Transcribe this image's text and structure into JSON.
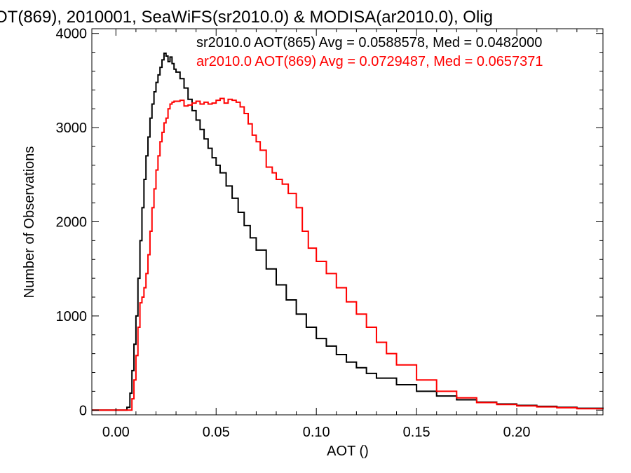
{
  "chart_data": {
    "type": "line",
    "title": "OT(869), 2010001, SeaWiFS(sr2010.0) & MODISA(ar2010.0), Olig",
    "xlabel": "AOT ()",
    "ylabel": "Number of Observations",
    "xlim": [
      -0.012,
      0.243
    ],
    "ylim": [
      -50,
      4050
    ],
    "xticks": [
      0.0,
      0.05,
      0.1,
      0.15,
      0.2
    ],
    "xtick_labels": [
      "0.00",
      "0.05",
      "0.10",
      "0.15",
      "0.20"
    ],
    "yticks": [
      0,
      1000,
      2000,
      3000,
      4000
    ],
    "ytick_labels": [
      "0",
      "1000",
      "2000",
      "3000",
      "4000"
    ],
    "grid": false,
    "legend_position": "top-right",
    "series": [
      {
        "name": "sr2010.0 AOT(865) Avg = 0.0588578, Med = 0.0482000",
        "color": "#000000",
        "x": [
          -0.012,
          0.0,
          0.004,
          0.0055,
          0.007,
          0.008,
          0.009,
          0.01,
          0.011,
          0.012,
          0.013,
          0.014,
          0.015,
          0.016,
          0.017,
          0.018,
          0.019,
          0.02,
          0.021,
          0.022,
          0.023,
          0.024,
          0.025,
          0.026,
          0.027,
          0.028,
          0.029,
          0.03,
          0.032,
          0.034,
          0.036,
          0.038,
          0.04,
          0.042,
          0.044,
          0.046,
          0.048,
          0.05,
          0.052,
          0.055,
          0.058,
          0.061,
          0.064,
          0.067,
          0.07,
          0.075,
          0.08,
          0.085,
          0.09,
          0.095,
          0.1,
          0.105,
          0.11,
          0.115,
          0.12,
          0.125,
          0.13,
          0.14,
          0.15,
          0.16,
          0.17,
          0.18,
          0.19,
          0.2,
          0.21,
          0.22,
          0.23,
          0.243
        ],
        "y": [
          0,
          0,
          0,
          30,
          180,
          420,
          700,
          1000,
          1400,
          1800,
          2150,
          2450,
          2700,
          2900,
          3100,
          3250,
          3380,
          3480,
          3560,
          3640,
          3720,
          3790,
          3760,
          3700,
          3750,
          3680,
          3620,
          3590,
          3520,
          3420,
          3300,
          3180,
          3080,
          2980,
          2880,
          2780,
          2680,
          2600,
          2520,
          2380,
          2250,
          2100,
          1960,
          1830,
          1700,
          1500,
          1330,
          1170,
          1020,
          880,
          760,
          680,
          590,
          510,
          450,
          390,
          340,
          270,
          200,
          150,
          110,
          85,
          65,
          50,
          40,
          30,
          20,
          10
        ]
      },
      {
        "name": "ar2010.0 AOT(869) Avg = 0.0729487, Med = 0.0657371",
        "color": "#ff0000",
        "x": [
          -0.012,
          0.0,
          0.004,
          0.007,
          0.008,
          0.009,
          0.01,
          0.011,
          0.012,
          0.013,
          0.014,
          0.015,
          0.016,
          0.017,
          0.018,
          0.019,
          0.02,
          0.021,
          0.022,
          0.023,
          0.024,
          0.025,
          0.026,
          0.027,
          0.028,
          0.029,
          0.03,
          0.032,
          0.034,
          0.036,
          0.038,
          0.04,
          0.042,
          0.044,
          0.046,
          0.048,
          0.05,
          0.052,
          0.054,
          0.056,
          0.058,
          0.06,
          0.062,
          0.064,
          0.066,
          0.068,
          0.07,
          0.072,
          0.075,
          0.078,
          0.08,
          0.083,
          0.086,
          0.09,
          0.093,
          0.096,
          0.1,
          0.105,
          0.11,
          0.115,
          0.12,
          0.125,
          0.13,
          0.135,
          0.14,
          0.15,
          0.16,
          0.17,
          0.18,
          0.19,
          0.2,
          0.21,
          0.22,
          0.23,
          0.243
        ],
        "y": [
          0,
          0,
          0,
          0,
          120,
          320,
          580,
          880,
          1140,
          1200,
          1300,
          1450,
          1650,
          1900,
          2150,
          2350,
          2550,
          2700,
          2850,
          2950,
          3050,
          3100,
          3200,
          3250,
          3270,
          3280,
          3280,
          3290,
          3230,
          3240,
          3260,
          3280,
          3250,
          3270,
          3250,
          3260,
          3290,
          3310,
          3260,
          3300,
          3290,
          3270,
          3220,
          3150,
          3040,
          2920,
          2850,
          2760,
          2580,
          2520,
          2450,
          2400,
          2300,
          2150,
          1900,
          1720,
          1580,
          1450,
          1300,
          1150,
          1020,
          880,
          720,
          600,
          480,
          320,
          200,
          130,
          80,
          60,
          45,
          35,
          25,
          15,
          8
        ]
      }
    ]
  }
}
